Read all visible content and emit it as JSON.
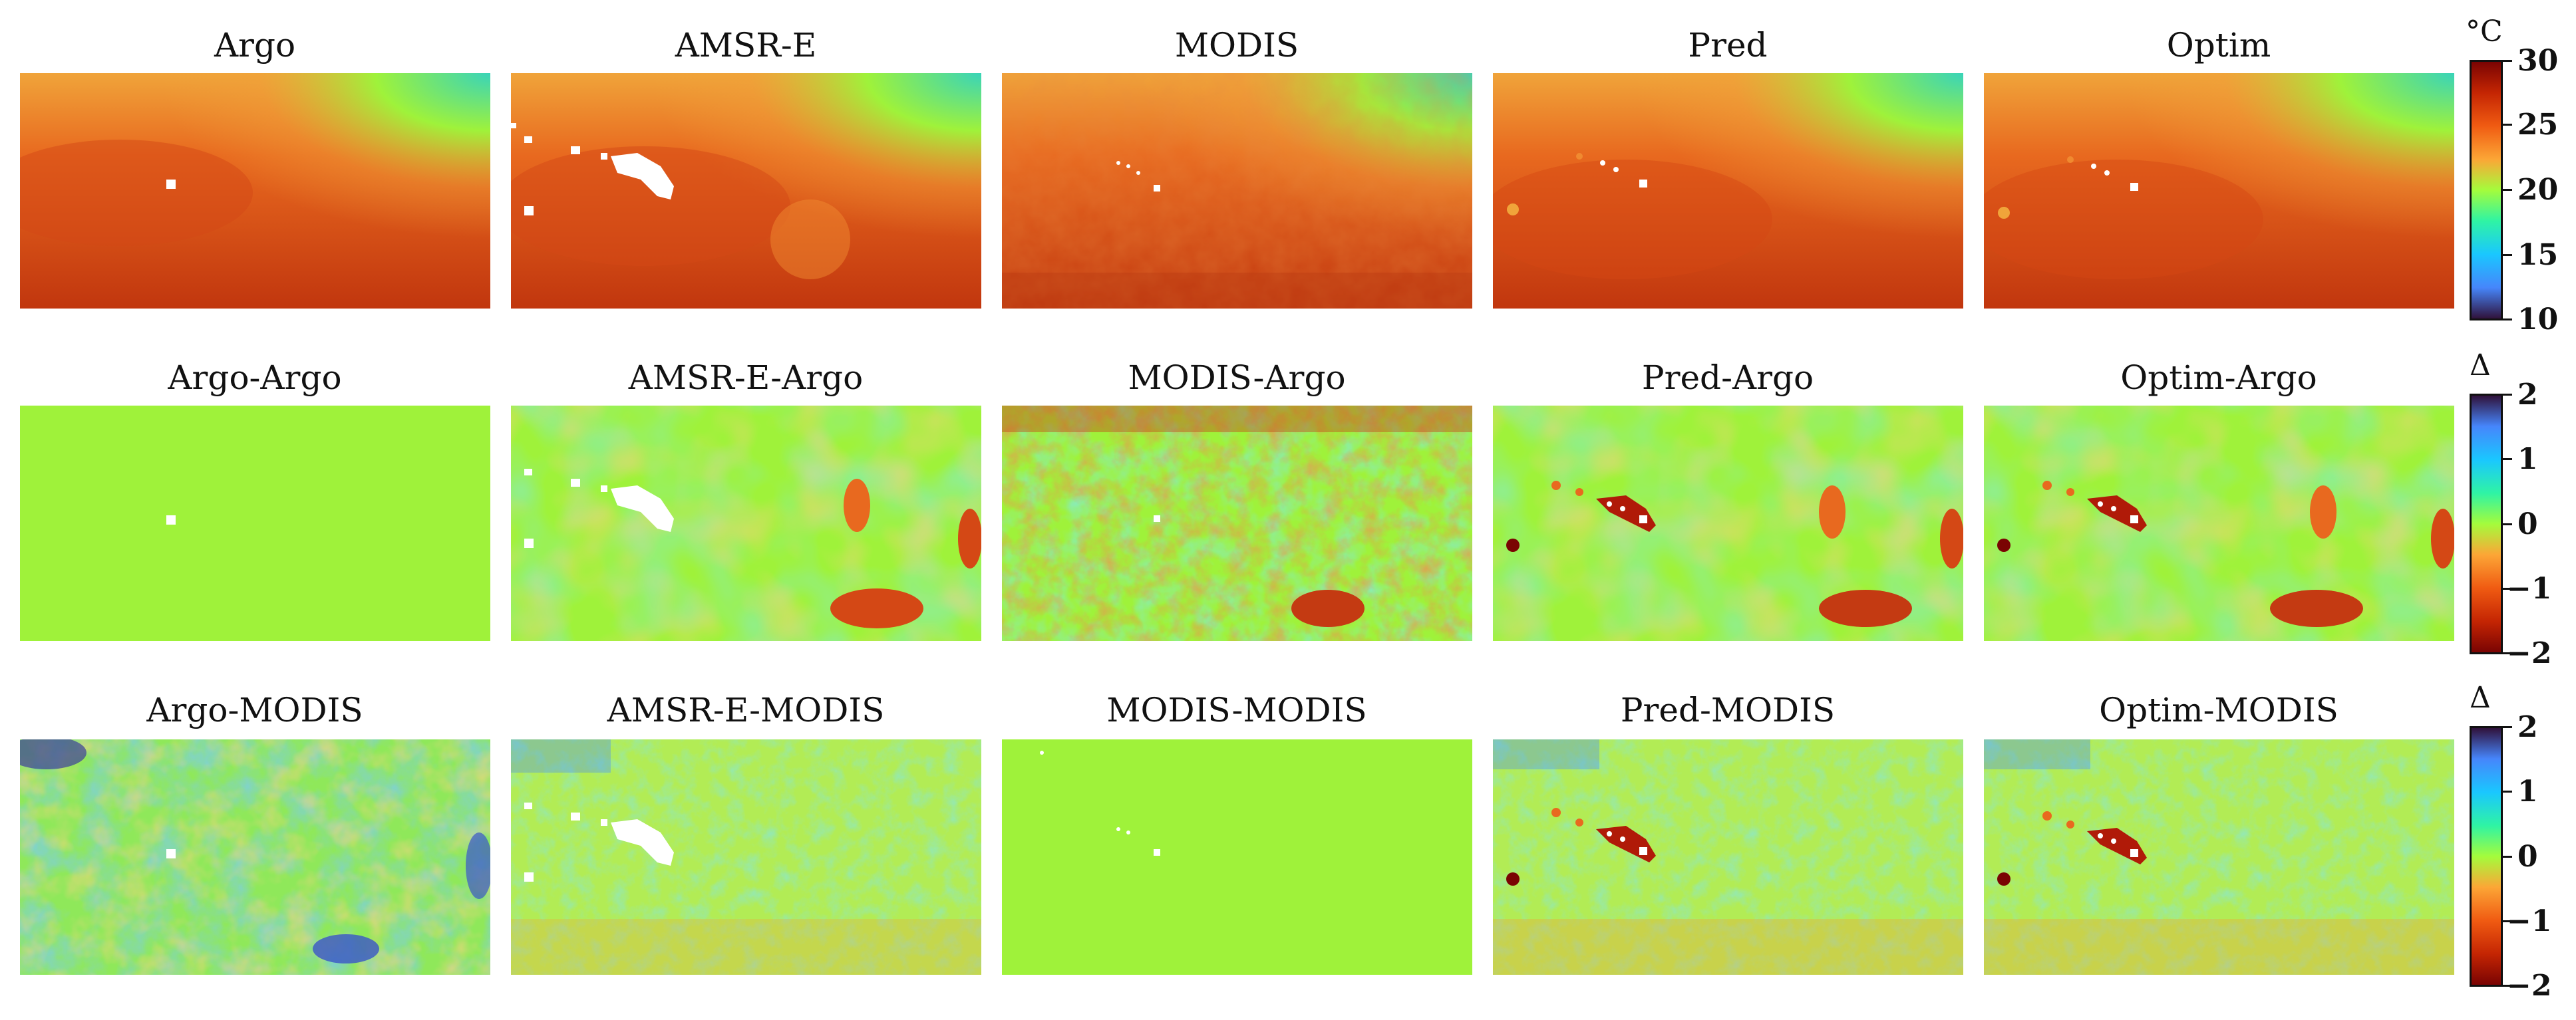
{
  "chart_data": [
    {
      "type": "heatmap",
      "row": "sst",
      "panels": [
        "Argo",
        "AMSR-E",
        "MODIS",
        "Pred",
        "Optim"
      ],
      "colorbar": {
        "unit_label": "°C",
        "ticks": [
          "30",
          "25",
          "20",
          "15",
          "10"
        ],
        "range": [
          10,
          30
        ]
      },
      "colormap": "turbo"
    },
    {
      "type": "heatmap",
      "row": "diff-argo",
      "panels": [
        "Argo-Argo",
        "AMSR-E-Argo",
        "MODIS-Argo",
        "Pred-Argo",
        "Optim-Argo"
      ],
      "colorbar": {
        "unit_label": "Δ",
        "ticks": [
          "2",
          "1",
          "0",
          "−1",
          "−2"
        ],
        "range": [
          -2,
          2
        ]
      },
      "colormap": "turbo_r"
    },
    {
      "type": "heatmap",
      "row": "diff-modis",
      "panels": [
        "Argo-MODIS",
        "AMSR-E-MODIS",
        "MODIS-MODIS",
        "Pred-MODIS",
        "Optim-MODIS"
      ],
      "colorbar": {
        "unit_label": "Δ",
        "ticks": [
          "2",
          "1",
          "0",
          "−1",
          "−2"
        ],
        "range": [
          -2,
          2
        ]
      },
      "colormap": "turbo_r"
    }
  ],
  "colors": {
    "hot": "#b83a12",
    "warm": "#e8691f",
    "mid": "#f0a43a",
    "neutral": "#9ff23a",
    "cool": "#39d4b9",
    "cold": "#3471e0",
    "deep": "#3b2f8a"
  }
}
